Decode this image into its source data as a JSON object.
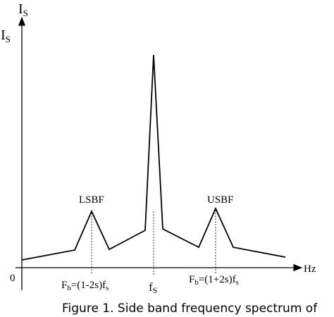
{
  "figure": {
    "y_axis_label_top": "I",
    "y_axis_label_top_sub": "S",
    "y_axis_label_side": "I",
    "y_axis_label_side_sub": "S",
    "x_axis_label": "Hz",
    "origin_label": "0",
    "peak_label_left": "LSBF",
    "peak_label_right": "USBF",
    "tick_left_prefix": "F",
    "tick_left_sub": "b",
    "tick_left_rest": "=(1-2s)f",
    "tick_left_sub2": "s",
    "tick_center_main": "f",
    "tick_center_sub": "S",
    "tick_right_prefix": "F",
    "tick_right_sub": "b",
    "tick_right_rest": "=(1+2s)f",
    "tick_right_sub2": "s"
  },
  "caption": "Figure 1. Side band frequency spectrum of"
}
